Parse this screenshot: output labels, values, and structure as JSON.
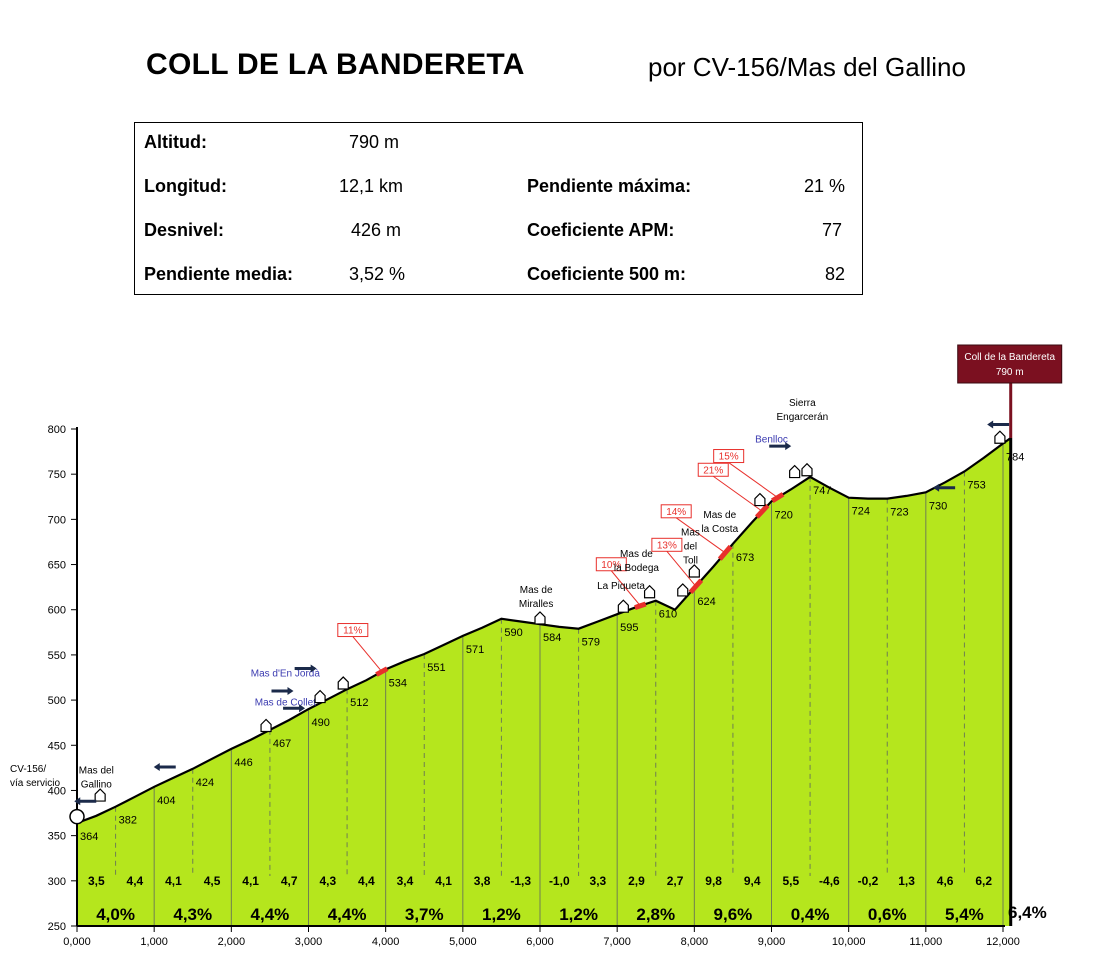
{
  "header": {
    "title": "COLL DE LA BANDERETA",
    "subtitle": "por CV-156/Mas del Gallino"
  },
  "stats": {
    "altitud": {
      "label": "Altitud:",
      "value": "790 m"
    },
    "longitud": {
      "label": "Longitud:",
      "value": "12,1 km"
    },
    "desnivel": {
      "label": "Desnivel:",
      "value": "426 m"
    },
    "pendiente_media": {
      "label": "Pendiente media:",
      "value": "3,52 %"
    },
    "pendiente_maxima": {
      "label": "Pendiente máxima:",
      "value": "21 %"
    },
    "coef_apm": {
      "label": "Coeficiente APM:",
      "value": "77"
    },
    "coef_500": {
      "label": "Coeficiente 500 m:",
      "value": "82"
    }
  },
  "colors": {
    "fill": "#b5e61d",
    "outline": "#000000",
    "steep": "#e8302c",
    "summit_box": "#7b1020",
    "label_blue": "#3a3ab0"
  },
  "chart_data": {
    "type": "area",
    "xlim": [
      0,
      12100
    ],
    "ylim": [
      250,
      800
    ],
    "yticks": [
      250,
      300,
      350,
      400,
      450,
      500,
      550,
      600,
      650,
      700,
      750,
      800
    ],
    "xticks": [
      0,
      1000,
      2000,
      3000,
      4000,
      5000,
      6000,
      7000,
      8000,
      9000,
      10000,
      11000,
      12000
    ],
    "xtick_labels": [
      "0,000",
      "1,000",
      "2,000",
      "3,000",
      "4,000",
      "5,000",
      "6,000",
      "7,000",
      "8,000",
      "9,000",
      "10,000",
      "11,000",
      "12,000"
    ],
    "profile": [
      [
        0,
        364
      ],
      [
        250,
        372
      ],
      [
        500,
        382
      ],
      [
        750,
        393
      ],
      [
        1000,
        404
      ],
      [
        1250,
        414
      ],
      [
        1500,
        424
      ],
      [
        1750,
        435
      ],
      [
        2000,
        446
      ],
      [
        2250,
        456
      ],
      [
        2500,
        467
      ],
      [
        2750,
        478
      ],
      [
        3000,
        490
      ],
      [
        3250,
        501
      ],
      [
        3500,
        512
      ],
      [
        3750,
        522
      ],
      [
        4000,
        534
      ],
      [
        4250,
        543
      ],
      [
        4500,
        551
      ],
      [
        4750,
        561
      ],
      [
        5000,
        571
      ],
      [
        5250,
        580
      ],
      [
        5500,
        590
      ],
      [
        5750,
        587
      ],
      [
        6000,
        584
      ],
      [
        6250,
        581
      ],
      [
        6500,
        579
      ],
      [
        6750,
        587
      ],
      [
        7000,
        595
      ],
      [
        7250,
        603
      ],
      [
        7500,
        610
      ],
      [
        7750,
        600
      ],
      [
        8000,
        624
      ],
      [
        8250,
        648
      ],
      [
        8500,
        673
      ],
      [
        8750,
        697
      ],
      [
        9000,
        720
      ],
      [
        9250,
        733
      ],
      [
        9500,
        747
      ],
      [
        9750,
        735
      ],
      [
        10000,
        724
      ],
      [
        10250,
        723
      ],
      [
        10500,
        723
      ],
      [
        10750,
        726
      ],
      [
        11000,
        730
      ],
      [
        11250,
        741
      ],
      [
        11500,
        753
      ],
      [
        11750,
        768
      ],
      [
        12000,
        784
      ],
      [
        12100,
        790
      ]
    ],
    "km_gradients": [
      "4,0%",
      "4,3%",
      "4,4%",
      "4,4%",
      "3,7%",
      "1,2%",
      "1,2%",
      "2,8%",
      "9,6%",
      "0,4%",
      "0,6%",
      "5,4%"
    ],
    "final_gradient": "6,4%",
    "half_km_gradients": [
      "3,5",
      "4,4",
      "4,1",
      "4,5",
      "4,1",
      "4,7",
      "4,3",
      "4,4",
      "3,4",
      "4,1",
      "3,8",
      "-1,3",
      "-1,0",
      "3,3",
      "2,9",
      "2,7",
      "9,8",
      "9,4",
      "5,5",
      "-4,6",
      "-0,2",
      "1,3",
      "4,6",
      "6,2"
    ],
    "altitude_labels": [
      {
        "x": 0,
        "y": 364,
        "text": "364"
      },
      {
        "x": 500,
        "y": 382,
        "text": "382"
      },
      {
        "x": 1000,
        "y": 404,
        "text": "404"
      },
      {
        "x": 1500,
        "y": 424,
        "text": "424"
      },
      {
        "x": 2000,
        "y": 446,
        "text": "446"
      },
      {
        "x": 2500,
        "y": 467,
        "text": "467"
      },
      {
        "x": 3000,
        "y": 490,
        "text": "490"
      },
      {
        "x": 3500,
        "y": 512,
        "text": "512"
      },
      {
        "x": 4000,
        "y": 534,
        "text": "534"
      },
      {
        "x": 4500,
        "y": 551,
        "text": "551"
      },
      {
        "x": 5000,
        "y": 571,
        "text": "571"
      },
      {
        "x": 5500,
        "y": 590,
        "text": "590"
      },
      {
        "x": 6000,
        "y": 584,
        "text": "584"
      },
      {
        "x": 6500,
        "y": 579,
        "text": "579"
      },
      {
        "x": 7000,
        "y": 595,
        "text": "595"
      },
      {
        "x": 7500,
        "y": 610,
        "text": "610"
      },
      {
        "x": 8000,
        "y": 624,
        "text": "624"
      },
      {
        "x": 8500,
        "y": 673,
        "text": "673"
      },
      {
        "x": 9000,
        "y": 720,
        "text": "720"
      },
      {
        "x": 9500,
        "y": 747,
        "text": "747"
      },
      {
        "x": 10000,
        "y": 724,
        "text": "724"
      },
      {
        "x": 10500,
        "y": 723,
        "text": "723"
      },
      {
        "x": 11000,
        "y": 730,
        "text": "730"
      },
      {
        "x": 11500,
        "y": 753,
        "text": "753"
      },
      {
        "x": 12000,
        "y": 784,
        "text": "784"
      }
    ],
    "steep_sections": [
      {
        "x": 3950,
        "label": "11%"
      },
      {
        "x": 7300,
        "label": "10%"
      },
      {
        "x": 8020,
        "label": "13%"
      },
      {
        "x": 8400,
        "label": "14%"
      },
      {
        "x": 8880,
        "label": "21%"
      },
      {
        "x": 9080,
        "label": "15%"
      }
    ],
    "places": [
      {
        "x": 250,
        "y": 403,
        "lines": [
          "Mas del",
          "Gallino"
        ],
        "color": "#000000"
      },
      {
        "x": 2700,
        "y": 526,
        "lines": [
          "Mas d'En Jordà"
        ],
        "color": "#3a3ab0"
      },
      {
        "x": 2700,
        "y": 494,
        "lines": [
          "Mas de Collet"
        ],
        "color": "#3a3ab0"
      },
      {
        "x": 5950,
        "y": 603,
        "lines": [
          "Mas de",
          "Miralles"
        ],
        "color": "#000000"
      },
      {
        "x": 7250,
        "y": 643,
        "lines": [
          "Mas de",
          "la Bodega"
        ],
        "color": "#000000"
      },
      {
        "x": 7050,
        "y": 623,
        "lines": [
          "La Piqueta"
        ],
        "color": "#000000"
      },
      {
        "x": 7950,
        "y": 651,
        "lines": [
          "Mas",
          "del",
          "Toll"
        ],
        "color": "#000000"
      },
      {
        "x": 8330,
        "y": 686,
        "lines": [
          "Mas de",
          "la Costa"
        ],
        "color": "#000000"
      },
      {
        "x": 9000,
        "y": 785,
        "lines": [
          "Benlloc"
        ],
        "color": "#3a3ab0"
      },
      {
        "x": 9400,
        "y": 810,
        "lines": [
          "Sierra",
          "Engarcerán"
        ],
        "color": "#000000"
      },
      {
        "x": -180,
        "y": 405,
        "lines": [
          "CV-156/",
          "vía servicio"
        ],
        "color": "#000000"
      }
    ],
    "summit": {
      "x": 12100,
      "lines": [
        "Coll de la Bandereta",
        "790 m"
      ]
    }
  }
}
